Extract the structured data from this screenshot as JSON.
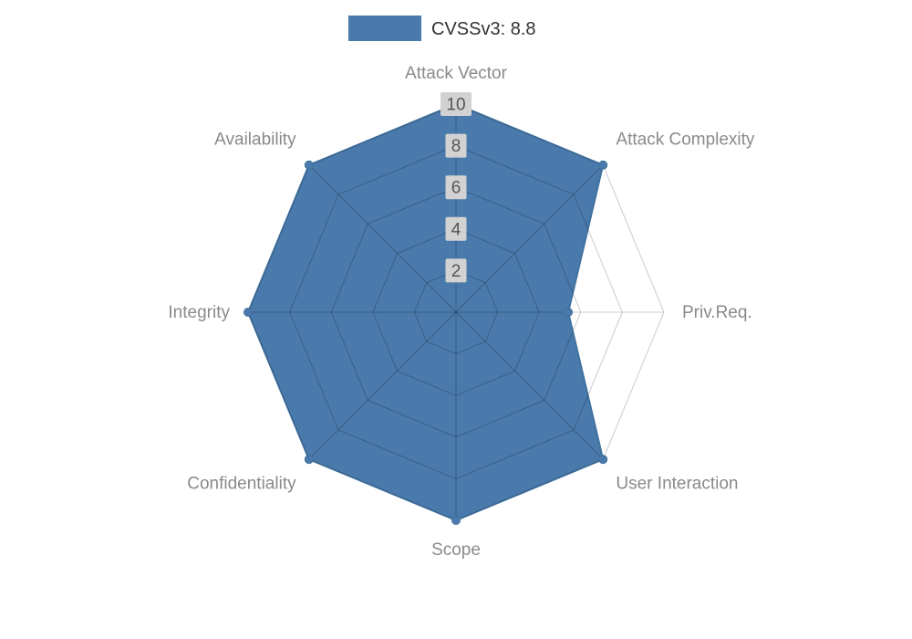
{
  "legend": {
    "label": "CVSSv3: 8.8",
    "swatch_color": "#4a7aab"
  },
  "chart_data": {
    "type": "radar",
    "title": "CVSSv3: 8.8",
    "categories": [
      "Attack Vector",
      "Attack Complexity",
      "Priv.Req.",
      "User Interaction",
      "Scope",
      "Confidentiality",
      "Integrity",
      "Availability"
    ],
    "series": [
      {
        "name": "CVSSv3: 8.8",
        "values": [
          10,
          10,
          5.4,
          10,
          10,
          10,
          10,
          10
        ]
      }
    ],
    "rlim": [
      0,
      10
    ],
    "tick_values": [
      2,
      4,
      6,
      8,
      10
    ],
    "grid": "polygon",
    "grid_rings": 5,
    "legend_position": "top-center",
    "colors": {
      "fill": "#4a7aab",
      "edge": "#41719f",
      "grid_line": "#cccccc",
      "inner_grid_line": "rgba(25,35,55,0.32)",
      "axis_label": "#8a8a8a",
      "tick_text": "#555555",
      "tick_bg": "#d2d2d2",
      "legend_text": "#333333"
    }
  }
}
